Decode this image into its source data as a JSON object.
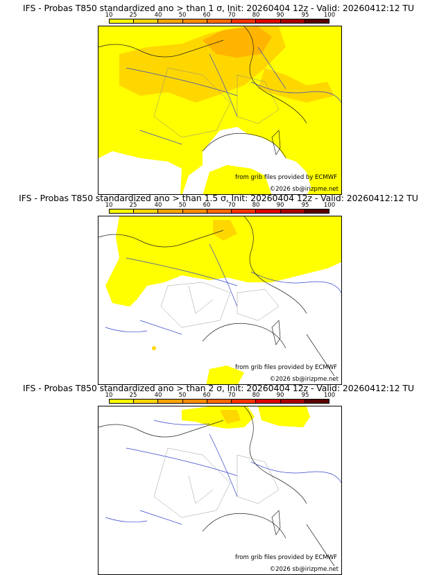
{
  "colorbar": {
    "ticks": [
      "10",
      "25",
      "40",
      "50",
      "60",
      "70",
      "80",
      "90",
      "95",
      "100"
    ],
    "colors": [
      "#ffff00",
      "#ffd700",
      "#ffa500",
      "#ff8c00",
      "#ff6a00",
      "#ff3300",
      "#dd0000",
      "#aa0000",
      "#5a0000"
    ]
  },
  "panels": [
    {
      "title": "IFS - Probas T850  standardized ano > than 1 σ, Init: 20260404 12z - Valid: 20260412:12 TU",
      "credit_source": "from grib files provided by ECMWF",
      "credit_copyright": "©2026 sb@irizpme.net"
    },
    {
      "title": "IFS - Probas T850  standardized ano > than 1.5 σ, Init: 20260404 12z - Valid: 20260412:12 TU",
      "credit_source": "from grib files provided by ECMWF",
      "credit_copyright": "©2026 sb@irizpme.net"
    },
    {
      "title": "IFS - Probas T850  standardized ano > than 2 σ, Init: 20260404 12z - Valid: 20260412:12 TU",
      "credit_source": "from grib files provided by ECMWF",
      "credit_copyright": "©2026 sb@irizpme.net"
    }
  ]
}
